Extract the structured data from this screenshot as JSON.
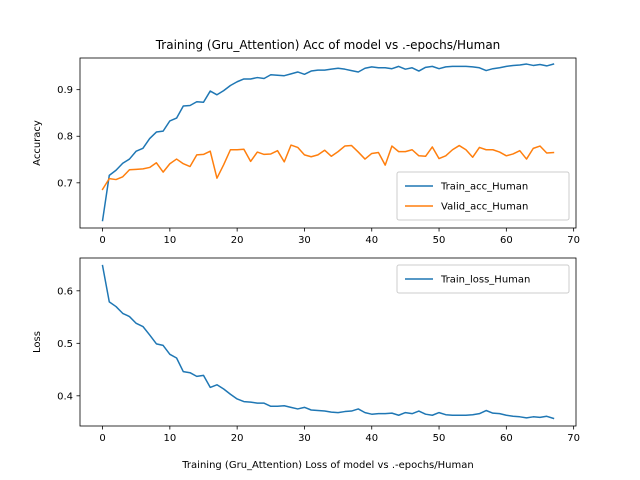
{
  "chart_data": [
    {
      "type": "line",
      "title": "Training (Gru_Attention) Acc of model vs .-epochs/Human",
      "xlabel": "",
      "ylabel": "Accuracy",
      "xlim": [
        -3.35,
        70.35
      ],
      "ylim": [
        0.603,
        0.968
      ],
      "xticks": [
        0,
        10,
        20,
        30,
        40,
        50,
        60,
        70
      ],
      "yticks": [
        0.7,
        0.8,
        0.9
      ],
      "grid": false,
      "legend": "lower-right",
      "x": [
        0,
        1,
        2,
        3,
        4,
        5,
        6,
        7,
        8,
        9,
        10,
        11,
        12,
        13,
        14,
        15,
        16,
        17,
        18,
        19,
        20,
        21,
        22,
        23,
        24,
        25,
        26,
        27,
        28,
        29,
        30,
        31,
        32,
        33,
        34,
        35,
        36,
        37,
        38,
        39,
        40,
        41,
        42,
        43,
        44,
        45,
        46,
        47,
        48,
        49,
        50,
        51,
        52,
        53,
        54,
        55,
        56,
        57,
        58,
        59,
        60,
        61,
        62,
        63,
        64,
        65,
        66,
        67
      ],
      "series": [
        {
          "name": "Train_acc_Human",
          "color": "#1f77b4",
          "values": [
            0.619,
            0.716,
            0.727,
            0.742,
            0.751,
            0.768,
            0.774,
            0.795,
            0.809,
            0.811,
            0.833,
            0.839,
            0.865,
            0.866,
            0.874,
            0.873,
            0.897,
            0.889,
            0.898,
            0.909,
            0.917,
            0.923,
            0.923,
            0.926,
            0.924,
            0.932,
            0.931,
            0.93,
            0.934,
            0.938,
            0.933,
            0.94,
            0.942,
            0.942,
            0.944,
            0.946,
            0.944,
            0.941,
            0.938,
            0.946,
            0.949,
            0.947,
            0.947,
            0.945,
            0.95,
            0.944,
            0.947,
            0.94,
            0.948,
            0.95,
            0.945,
            0.949,
            0.95,
            0.95,
            0.95,
            0.949,
            0.947,
            0.941,
            0.945,
            0.947,
            0.95,
            0.952,
            0.953,
            0.955,
            0.952,
            0.954,
            0.951,
            0.955
          ]
        },
        {
          "name": "Valid_acc_Human",
          "color": "#ff7f0e",
          "values": [
            0.686,
            0.709,
            0.707,
            0.713,
            0.728,
            0.729,
            0.73,
            0.733,
            0.743,
            0.723,
            0.741,
            0.751,
            0.741,
            0.735,
            0.76,
            0.761,
            0.768,
            0.71,
            0.739,
            0.771,
            0.771,
            0.772,
            0.746,
            0.766,
            0.761,
            0.762,
            0.769,
            0.745,
            0.781,
            0.776,
            0.76,
            0.756,
            0.76,
            0.77,
            0.757,
            0.767,
            0.779,
            0.78,
            0.766,
            0.751,
            0.763,
            0.765,
            0.738,
            0.779,
            0.767,
            0.767,
            0.771,
            0.758,
            0.757,
            0.777,
            0.752,
            0.758,
            0.771,
            0.78,
            0.771,
            0.755,
            0.776,
            0.771,
            0.771,
            0.766,
            0.758,
            0.762,
            0.769,
            0.751,
            0.774,
            0.779,
            0.764,
            0.765
          ]
        }
      ]
    },
    {
      "type": "line",
      "title": "",
      "xlabel": "Training (Gru_Attention) Loss of model vs .-epochs/Human",
      "ylabel": "Loss",
      "xlim": [
        -3.35,
        70.35
      ],
      "ylim": [
        0.3425,
        0.6625
      ],
      "xticks": [
        0,
        10,
        20,
        30,
        40,
        50,
        60,
        70
      ],
      "yticks": [
        0.4,
        0.5,
        0.6
      ],
      "grid": false,
      "legend": "upper-right",
      "x": [
        0,
        1,
        2,
        3,
        4,
        5,
        6,
        7,
        8,
        9,
        10,
        11,
        12,
        13,
        14,
        15,
        16,
        17,
        18,
        19,
        20,
        21,
        22,
        23,
        24,
        25,
        26,
        27,
        28,
        29,
        30,
        31,
        32,
        33,
        34,
        35,
        36,
        37,
        38,
        39,
        40,
        41,
        42,
        43,
        44,
        45,
        46,
        47,
        48,
        49,
        50,
        51,
        52,
        53,
        54,
        55,
        56,
        57,
        58,
        59,
        60,
        61,
        62,
        63,
        64,
        65,
        66,
        67
      ],
      "series": [
        {
          "name": "Train_loss_Human",
          "color": "#1f77b4",
          "values": [
            0.648,
            0.579,
            0.57,
            0.557,
            0.551,
            0.538,
            0.532,
            0.516,
            0.499,
            0.496,
            0.479,
            0.472,
            0.446,
            0.444,
            0.437,
            0.439,
            0.416,
            0.421,
            0.413,
            0.403,
            0.394,
            0.389,
            0.388,
            0.386,
            0.386,
            0.38,
            0.38,
            0.381,
            0.378,
            0.375,
            0.378,
            0.373,
            0.372,
            0.371,
            0.369,
            0.368,
            0.37,
            0.371,
            0.375,
            0.368,
            0.365,
            0.366,
            0.366,
            0.367,
            0.363,
            0.368,
            0.366,
            0.371,
            0.365,
            0.363,
            0.368,
            0.364,
            0.363,
            0.363,
            0.363,
            0.364,
            0.366,
            0.372,
            0.367,
            0.366,
            0.363,
            0.361,
            0.36,
            0.358,
            0.36,
            0.359,
            0.361,
            0.357
          ]
        }
      ]
    }
  ]
}
